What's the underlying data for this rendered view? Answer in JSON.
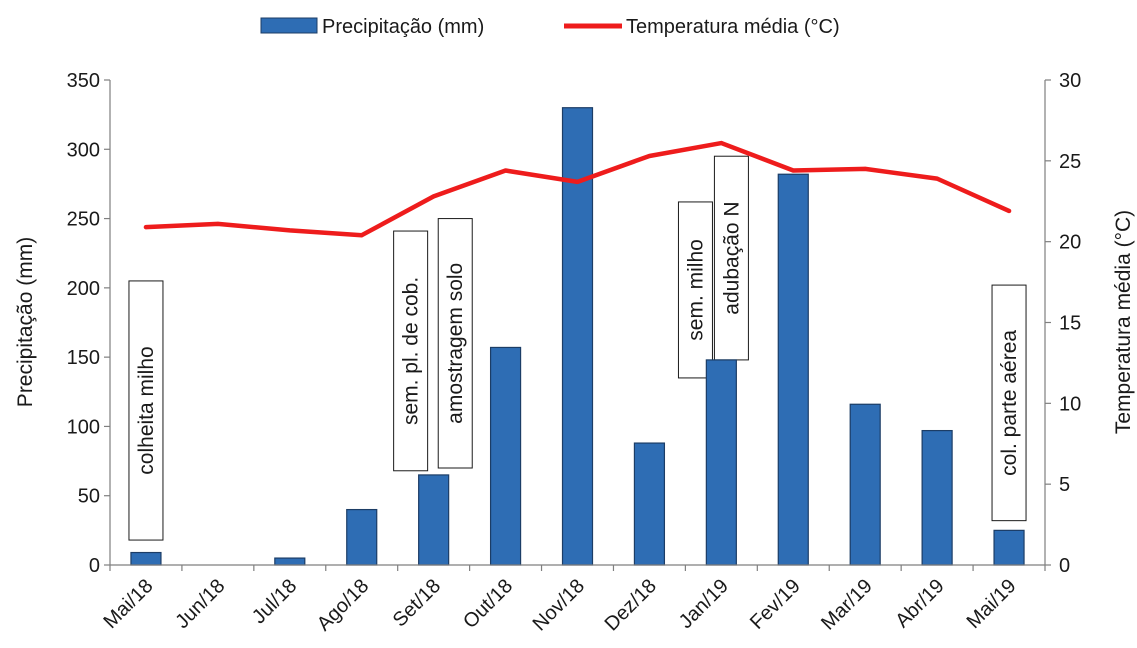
{
  "chart_data": {
    "type": "bar",
    "categories": [
      "Mai/18",
      "Jun/18",
      "Jul/18",
      "Ago/18",
      "Set/18",
      "Out/18",
      "Nov/18",
      "Dez/18",
      "Jan/19",
      "Fev/19",
      "Mar/19",
      "Abr/19",
      "Mai/19"
    ],
    "series": [
      {
        "name": "Precipitação (mm)",
        "type": "bar",
        "axis": "left",
        "color": "#2e6db4",
        "values": [
          9,
          0,
          5,
          40,
          65,
          157,
          330,
          88,
          148,
          282,
          116,
          97,
          25
        ]
      },
      {
        "name": "Temperatura média (°C)",
        "type": "line",
        "axis": "right",
        "color": "#ee1c1c",
        "values": [
          20.9,
          21.1,
          20.7,
          20.4,
          22.8,
          24.4,
          23.7,
          25.3,
          26.1,
          24.4,
          24.5,
          23.9,
          21.9
        ]
      }
    ],
    "ylabel": "Precipitação (mm)",
    "y2label": "Temperatura média (°C)",
    "ylim": [
      0,
      350
    ],
    "y2lim": [
      0,
      30
    ],
    "yticks": [
      0,
      50,
      100,
      150,
      200,
      250,
      300,
      350
    ],
    "y2ticks": [
      0,
      5,
      10,
      15,
      20,
      25,
      30
    ],
    "legend_position": "top-center",
    "grid": false,
    "annotations": [
      {
        "text": "colheita milho",
        "category": "Mai/18",
        "y_from": 18,
        "y_to": 205
      },
      {
        "text": "sem. pl. de cob.",
        "category": "Set/18",
        "offset": -0.32,
        "y_from": 68,
        "y_to": 241
      },
      {
        "text": "amostragem solo",
        "category": "Set/18",
        "offset": 0.3,
        "y_from": 70,
        "y_to": 250
      },
      {
        "text": "sem. milho",
        "category": "Jan/19",
        "offset": -0.36,
        "y_from": 135,
        "y_to": 262
      },
      {
        "text": "adubação N",
        "category": "Jan/19",
        "offset": 0.14,
        "y_from": 148,
        "y_to": 295
      },
      {
        "text": "col. parte aérea",
        "category": "Mai/19",
        "y_from": 32,
        "y_to": 202
      }
    ]
  }
}
